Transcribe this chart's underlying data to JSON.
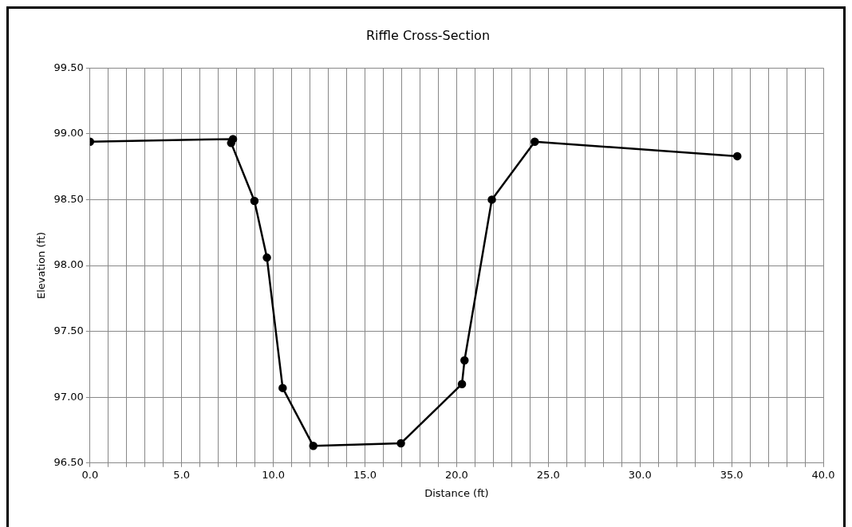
{
  "chart_data": {
    "type": "line",
    "title": "Riffle Cross-Section",
    "xlabel": "Distance (ft)",
    "ylabel": "Elevation (ft)",
    "series": [
      {
        "color": "#000000",
        "x": [
          0,
          7.8,
          7.7,
          8.97,
          9.65,
          10.51,
          12.18,
          16.96,
          20.29,
          20.43,
          21.92,
          24.26,
          35.31
        ],
        "values": [
          98.94,
          98.96,
          98.93,
          98.49,
          98.06,
          97.07,
          96.63,
          96.65,
          97.1,
          97.28,
          98.5,
          98.94,
          98.83
        ]
      }
    ],
    "xlim": [
      0,
      40
    ],
    "xticks": [
      {
        "value": 0,
        "label": "0.0"
      },
      {
        "value": 1,
        "label": null
      },
      {
        "value": 2,
        "label": null
      },
      {
        "value": 3,
        "label": null
      },
      {
        "value": 4,
        "label": null
      },
      {
        "value": 5,
        "label": "5.0"
      },
      {
        "value": 6,
        "label": null
      },
      {
        "value": 7,
        "label": null
      },
      {
        "value": 8,
        "label": null
      },
      {
        "value": 9,
        "label": null
      },
      {
        "value": 10,
        "label": "10.0"
      },
      {
        "value": 11,
        "label": null
      },
      {
        "value": 12,
        "label": null
      },
      {
        "value": 13,
        "label": null
      },
      {
        "value": 14,
        "label": null
      },
      {
        "value": 15,
        "label": "15.0"
      },
      {
        "value": 16,
        "label": null
      },
      {
        "value": 17,
        "label": null
      },
      {
        "value": 18,
        "label": null
      },
      {
        "value": 19,
        "label": null
      },
      {
        "value": 20,
        "label": "20.0"
      },
      {
        "value": 21,
        "label": null
      },
      {
        "value": 22,
        "label": null
      },
      {
        "value": 23,
        "label": null
      },
      {
        "value": 24,
        "label": null
      },
      {
        "value": 25,
        "label": "25.0"
      },
      {
        "value": 26,
        "label": null
      },
      {
        "value": 27,
        "label": null
      },
      {
        "value": 28,
        "label": null
      },
      {
        "value": 29,
        "label": null
      },
      {
        "value": 30,
        "label": "30.0"
      },
      {
        "value": 31,
        "label": null
      },
      {
        "value": 32,
        "label": null
      },
      {
        "value": 33,
        "label": null
      },
      {
        "value": 34,
        "label": null
      },
      {
        "value": 35,
        "label": "35.0"
      },
      {
        "value": 36,
        "label": null
      },
      {
        "value": 37,
        "label": null
      },
      {
        "value": 38,
        "label": null
      },
      {
        "value": 39,
        "label": null
      },
      {
        "value": 40,
        "label": "40.0"
      }
    ],
    "ylim": [
      96.5,
      99.5
    ],
    "yticks": [
      {
        "value": 96.5,
        "label": "96.50"
      },
      {
        "value": 97,
        "label": "97.00"
      },
      {
        "value": 97.5,
        "label": "97.50"
      },
      {
        "value": 98,
        "label": "98.00"
      },
      {
        "value": 98.5,
        "label": "98.50"
      },
      {
        "value": 99,
        "label": "99.00"
      },
      {
        "value": 99.5,
        "label": "99.50"
      }
    ],
    "grid": true,
    "legend": false,
    "marker": "circle",
    "line_style": "solid"
  }
}
